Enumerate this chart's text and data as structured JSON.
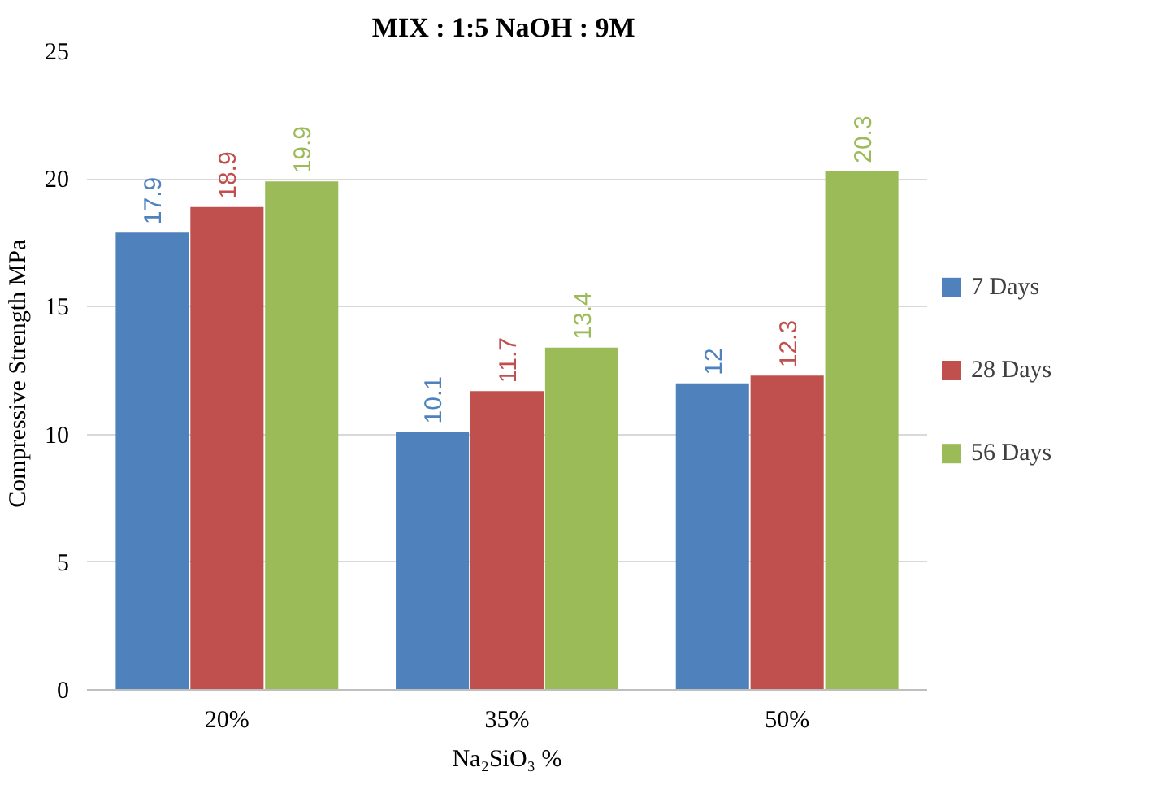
{
  "chart_data": {
    "type": "bar",
    "title": "MIX : 1:5  NaOH : 9M",
    "xlabel": "Na₂SiO₃ %",
    "ylabel": "Compressive Strength  MPa",
    "categories": [
      "20%",
      "35%",
      "50%"
    ],
    "series": [
      {
        "name": "7 Days",
        "color": "#4f81bd",
        "values": [
          17.9,
          10.1,
          12
        ]
      },
      {
        "name": "28 Days",
        "color": "#c0504d",
        "values": [
          18.9,
          11.7,
          12.3
        ]
      },
      {
        "name": "56 Days",
        "color": "#9bbb59",
        "values": [
          19.9,
          13.4,
          20.3
        ]
      }
    ],
    "ylim": [
      0,
      25
    ],
    "yticks": [
      0,
      5,
      10,
      15,
      20,
      25
    ],
    "grid": "y",
    "legend": "right",
    "data_labels": true
  }
}
